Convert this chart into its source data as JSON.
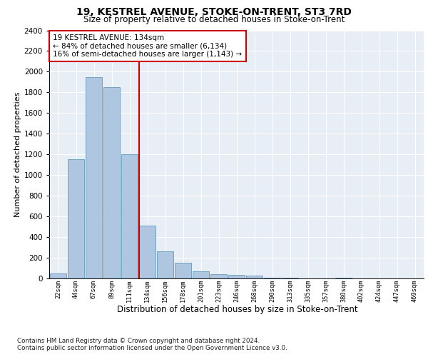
{
  "title1": "19, KESTREL AVENUE, STOKE-ON-TRENT, ST3 7RD",
  "title2": "Size of property relative to detached houses in Stoke-on-Trent",
  "xlabel": "Distribution of detached houses by size in Stoke-on-Trent",
  "ylabel": "Number of detached properties",
  "categories": [
    "22sqm",
    "44sqm",
    "67sqm",
    "89sqm",
    "111sqm",
    "134sqm",
    "156sqm",
    "178sqm",
    "201sqm",
    "223sqm",
    "246sqm",
    "268sqm",
    "290sqm",
    "313sqm",
    "335sqm",
    "357sqm",
    "380sqm",
    "402sqm",
    "424sqm",
    "447sqm",
    "469sqm"
  ],
  "values": [
    50,
    1150,
    1950,
    1850,
    1200,
    510,
    265,
    150,
    70,
    40,
    35,
    30,
    10,
    10,
    0,
    0,
    10,
    0,
    0,
    0,
    0
  ],
  "bar_color": "#aec6e0",
  "bar_edge_color": "#6699bb",
  "vline_index": 5,
  "vline_color": "#cc0000",
  "ylim": [
    0,
    2400
  ],
  "yticks": [
    0,
    200,
    400,
    600,
    800,
    1000,
    1200,
    1400,
    1600,
    1800,
    2000,
    2200,
    2400
  ],
  "annotation_title": "19 KESTREL AVENUE: 134sqm",
  "annotation_line1": "← 84% of detached houses are smaller (6,134)",
  "annotation_line2": "16% of semi-detached houses are larger (1,143) →",
  "annotation_box_color": "#ffffff",
  "annotation_box_edge": "#cc0000",
  "footer1": "Contains HM Land Registry data © Crown copyright and database right 2024.",
  "footer2": "Contains public sector information licensed under the Open Government Licence v3.0.",
  "bg_color": "#e8eef5",
  "fig_bg_color": "#ffffff",
  "grid_color": "#ffffff"
}
